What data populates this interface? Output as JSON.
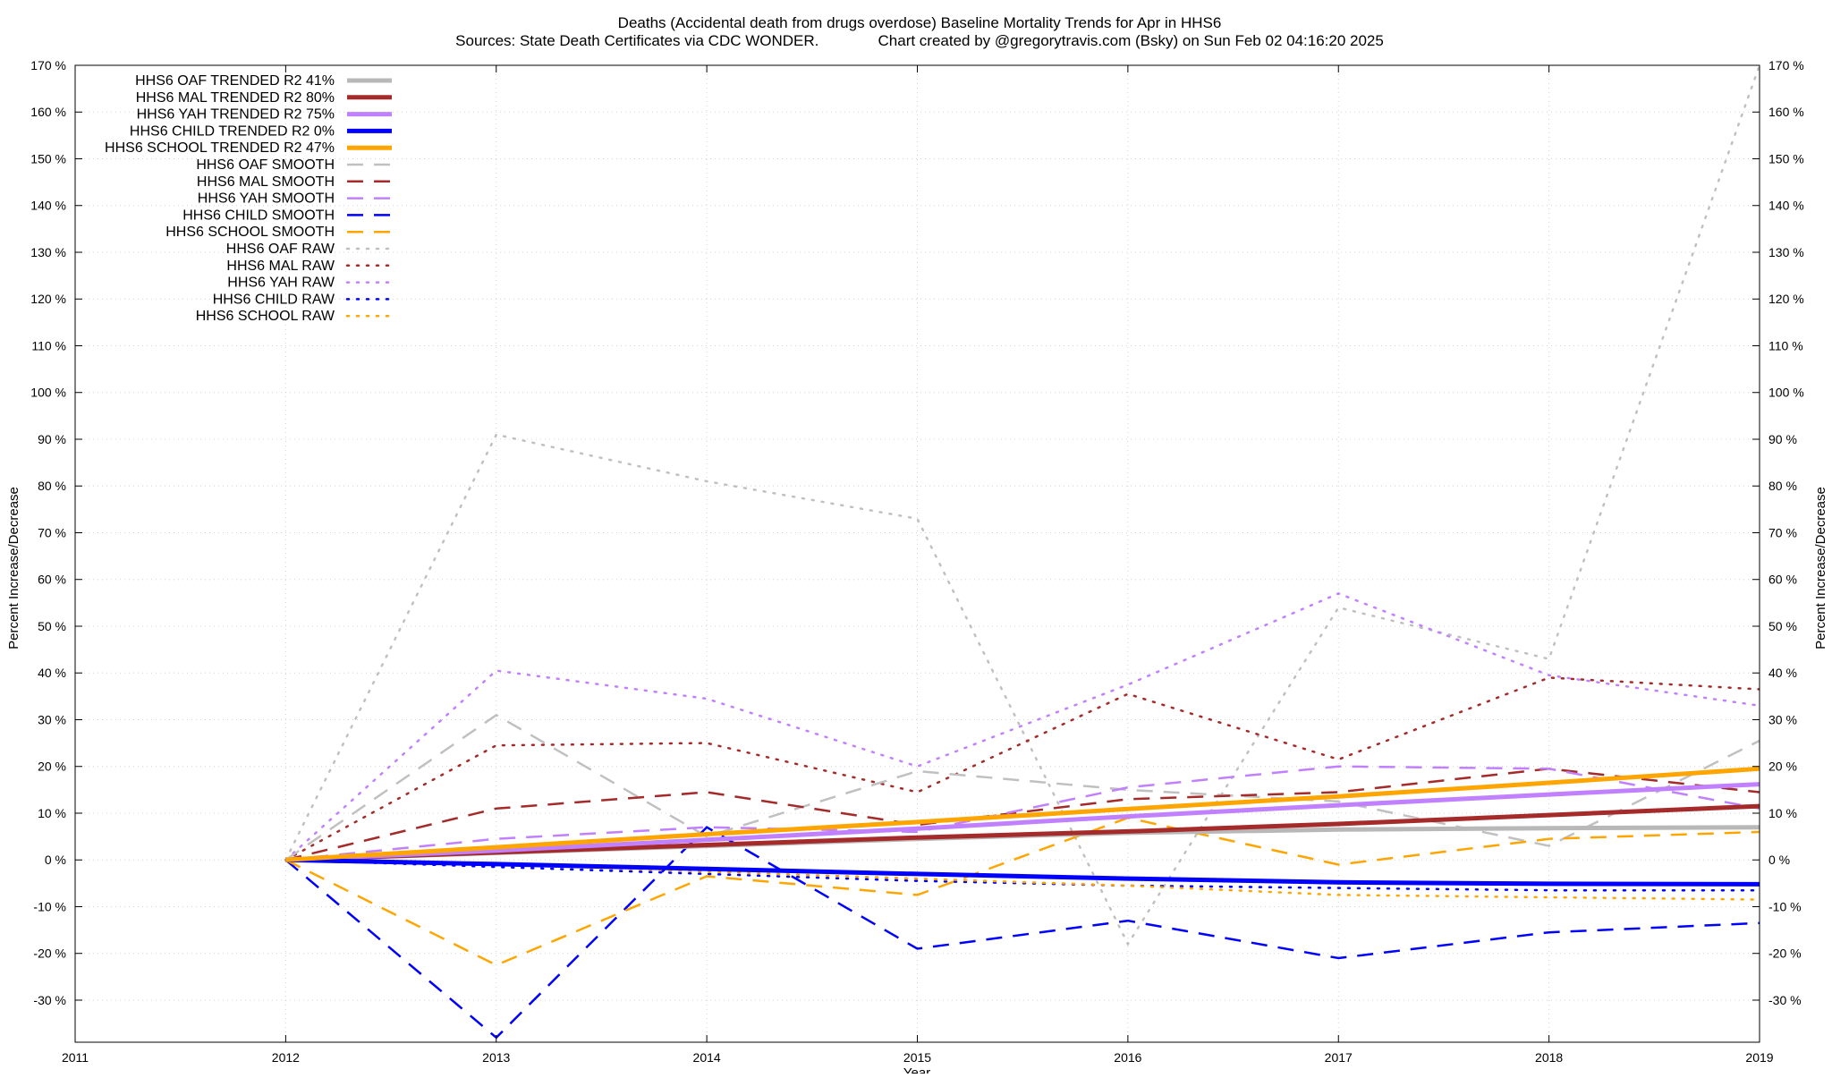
{
  "chart_data": {
    "type": "line",
    "title": "Deaths (Accidental death from drugs overdose)  Baseline Mortality Trends for Apr in HHS6",
    "subtitle": "Sources: State Death Certificates via CDC WONDER.              Chart created by @gregorytravis.com (Bsky) on Sun Feb 02 04:16:20 2025",
    "xlabel": "Year",
    "ylabel": "Percent Increase/Decrease",
    "y2label": "Percent Increase/Decrease",
    "xlim": [
      2011,
      2019
    ],
    "ylim": [
      -39,
      170
    ],
    "x_ticks": [
      "2011",
      "2012",
      "2013",
      "2014",
      "2015",
      "2016",
      "2017",
      "2018",
      "2019"
    ],
    "y_ticks": [
      {
        "v": 170,
        "l": "170 %"
      },
      {
        "v": 160,
        "l": "160 %"
      },
      {
        "v": 150,
        "l": "150 %"
      },
      {
        "v": 140,
        "l": "140 %"
      },
      {
        "v": 130,
        "l": "130 %"
      },
      {
        "v": 120,
        "l": "120 %"
      },
      {
        "v": 110,
        "l": "110 %"
      },
      {
        "v": 100,
        "l": "100 %"
      },
      {
        "v": 90,
        "l": "90 %"
      },
      {
        "v": 80,
        "l": "80 %"
      },
      {
        "v": 70,
        "l": "70 %"
      },
      {
        "v": 60,
        "l": "60 %"
      },
      {
        "v": 50,
        "l": "50 %"
      },
      {
        "v": 40,
        "l": "40 %"
      },
      {
        "v": 30,
        "l": "30 %"
      },
      {
        "v": 20,
        "l": "20 %"
      },
      {
        "v": 10,
        "l": "10 %"
      },
      {
        "v": 0,
        "l": "0 %"
      },
      {
        "v": -10,
        "l": "-10 %"
      },
      {
        "v": -20,
        "l": "-20 %"
      },
      {
        "v": -30,
        "l": "-30 %"
      }
    ],
    "grid": true,
    "legend_position": "top-left",
    "x": [
      2012,
      2013,
      2014,
      2015,
      2016,
      2017,
      2018,
      2019
    ],
    "series": [
      {
        "name": "HHS6 OAF TRENDED R2",
        "r2": "41%",
        "style": "solid",
        "color": "#b8b8b8",
        "values": [
          0,
          1.5,
          3,
          4.5,
          5.8,
          6.5,
          6.8,
          7
        ]
      },
      {
        "name": "HHS6 MAL TRENDED R2",
        "r2": "80%",
        "style": "solid",
        "color": "#a52a2a",
        "values": [
          0,
          1.6,
          3.2,
          4.8,
          6.1,
          7.7,
          9.6,
          11.5
        ]
      },
      {
        "name": "HHS6 YAH TRENDED R2",
        "r2": "75%",
        "style": "solid",
        "color": "#c080ff",
        "values": [
          0,
          2,
          4.3,
          6.7,
          9.3,
          11.7,
          14,
          16.2
        ]
      },
      {
        "name": "HHS6 CHILD TRENDED R2",
        "r2": "0%",
        "style": "solid",
        "color": "#0000ff",
        "values": [
          0,
          -0.9,
          -1.9,
          -3,
          -4,
          -4.8,
          -5.1,
          -5.2
        ]
      },
      {
        "name": "HHS6 SCHOOL TRENDED R2",
        "r2": "47%",
        "style": "solid",
        "color": "#ffa500",
        "values": [
          0,
          2.7,
          5.5,
          8.1,
          10.9,
          13.6,
          16.5,
          19.5
        ]
      },
      {
        "name": "HHS6 OAF SMOOTH",
        "r2": "",
        "style": "dash",
        "color": "#c0c0c0",
        "values": [
          0,
          31,
          5,
          19,
          15,
          12.5,
          3,
          25.5
        ]
      },
      {
        "name": "HHS6 MAL SMOOTH",
        "r2": "",
        "style": "dash",
        "color": "#a52a2a",
        "values": [
          0,
          11,
          14.5,
          7.5,
          13,
          14.5,
          19.5,
          14.5
        ]
      },
      {
        "name": "HHS6 YAH SMOOTH",
        "r2": "",
        "style": "dash",
        "color": "#c080ff",
        "values": [
          0,
          4.5,
          7,
          6,
          15.5,
          20,
          19.5,
          11
        ]
      },
      {
        "name": "HHS6 CHILD SMOOTH",
        "r2": "",
        "style": "dash",
        "color": "#0000ff",
        "values": [
          0,
          -38,
          7,
          -19,
          -13,
          -21,
          -15.5,
          -13.5
        ]
      },
      {
        "name": "HHS6 SCHOOL SMOOTH",
        "r2": "",
        "style": "dash",
        "color": "#ffa500",
        "values": [
          0,
          -22.5,
          -3.5,
          -7.5,
          9,
          -1,
          4.5,
          6
        ]
      },
      {
        "name": "HHS6 OAF RAW",
        "r2": "",
        "style": "dot",
        "color": "#c0c0c0",
        "values": [
          0,
          91,
          81,
          73,
          -18,
          54,
          43,
          170
        ]
      },
      {
        "name": "HHS6 MAL RAW",
        "r2": "",
        "style": "dot",
        "color": "#a52a2a",
        "values": [
          0,
          24.5,
          25,
          14.5,
          35.5,
          21.5,
          39,
          36.5
        ]
      },
      {
        "name": "HHS6 YAH RAW",
        "r2": "",
        "style": "dot",
        "color": "#c080ff",
        "values": [
          0,
          40.5,
          34.5,
          20,
          37.5,
          57,
          39.5,
          33
        ]
      },
      {
        "name": "HHS6 CHILD RAW",
        "r2": "",
        "style": "dot",
        "color": "#0000ff",
        "values": [
          0,
          -1.5,
          -3,
          -4.5,
          -5.5,
          -6,
          -6.5,
          -6.5
        ]
      },
      {
        "name": "HHS6 SCHOOL RAW",
        "r2": "",
        "style": "dot",
        "color": "#ffa500",
        "values": [
          0,
          -1,
          -2.5,
          -4,
          -5.5,
          -7.5,
          -8,
          -8.5
        ]
      }
    ]
  }
}
